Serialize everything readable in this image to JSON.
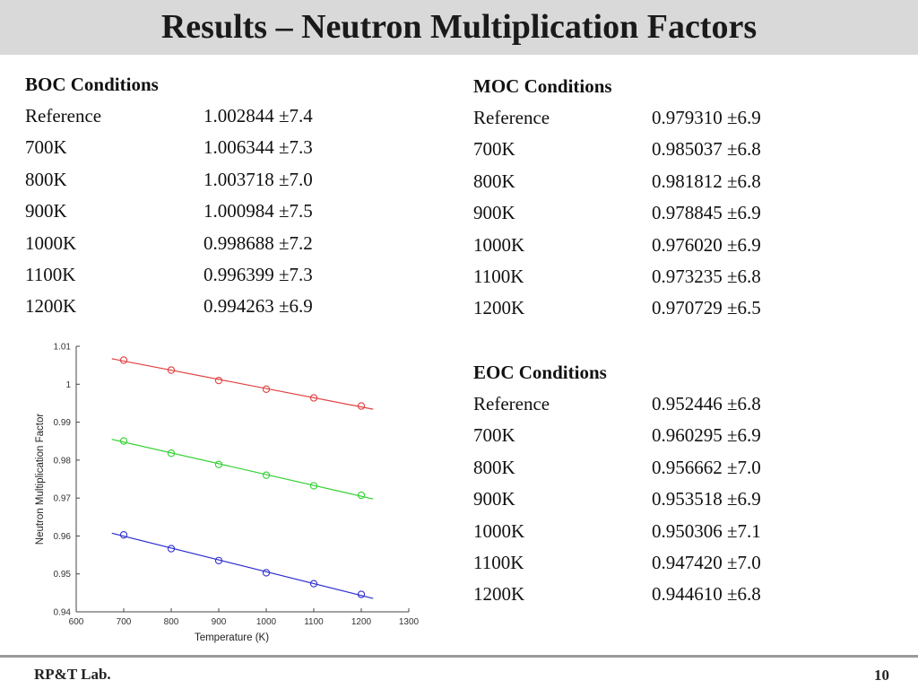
{
  "title": "Results – Neutron Multiplication Factors",
  "boc": {
    "heading": "BOC Conditions",
    "rows": [
      {
        "label": "Reference",
        "value": "1.002844 ±7.4"
      },
      {
        "label": "700K",
        "value": "1.006344 ±7.3"
      },
      {
        "label": "800K",
        "value": "1.003718 ±7.0"
      },
      {
        "label": "900K",
        "value": "1.000984 ±7.5"
      },
      {
        "label": "1000K",
        "value": "0.998688 ±7.2"
      },
      {
        "label": "1100K",
        "value": "0.996399 ±7.3"
      },
      {
        "label": "1200K",
        "value": "0.994263 ±6.9"
      }
    ]
  },
  "moc": {
    "heading": "MOC Conditions",
    "rows": [
      {
        "label": "Reference",
        "value": "0.979310 ±6.9"
      },
      {
        "label": "700K",
        "value": "0.985037 ±6.8"
      },
      {
        "label": "800K",
        "value": "0.981812 ±6.8"
      },
      {
        "label": "900K",
        "value": "0.978845 ±6.9"
      },
      {
        "label": "1000K",
        "value": "0.976020 ±6.9"
      },
      {
        "label": "1100K",
        "value": "0.973235 ±6.8"
      },
      {
        "label": "1200K",
        "value": "0.970729 ±6.5"
      }
    ]
  },
  "eoc": {
    "heading": "EOC Conditions",
    "rows": [
      {
        "label": "Reference",
        "value": "0.952446 ±6.8"
      },
      {
        "label": "700K",
        "value": "0.960295 ±6.9"
      },
      {
        "label": "800K",
        "value": "0.956662 ±7.0"
      },
      {
        "label": "900K",
        "value": "0.953518 ±6.9"
      },
      {
        "label": "1000K",
        "value": "0.950306 ±7.1"
      },
      {
        "label": "1100K",
        "value": "0.947420 ±7.0"
      },
      {
        "label": "1200K",
        "value": "0.944610 ±6.8"
      }
    ]
  },
  "chart_data": {
    "type": "scatter",
    "xlabel": "Temperature (K)",
    "ylabel": "Neutron Multiplication Factor",
    "xlim": [
      600,
      1300
    ],
    "ylim": [
      0.94,
      1.01
    ],
    "xticks": [
      "600",
      "700",
      "800",
      "900",
      "1000",
      "1100",
      "1200",
      "1300"
    ],
    "yticks": [
      "0.94",
      "0.95",
      "0.96",
      "0.97",
      "0.98",
      "0.99",
      "1",
      "1.01"
    ],
    "fit_range": [
      675,
      1225
    ],
    "grid": false,
    "series": [
      {
        "color": "#e04040",
        "x": [
          700,
          800,
          900,
          1000,
          1100,
          1200
        ],
        "y": [
          1.006344,
          1.003718,
          1.000984,
          0.998688,
          0.996399,
          0.994263
        ]
      },
      {
        "color": "#30d030",
        "x": [
          700,
          800,
          900,
          1000,
          1100,
          1200
        ],
        "y": [
          0.985037,
          0.981812,
          0.978845,
          0.97602,
          0.973235,
          0.970729
        ]
      },
      {
        "color": "#3030d0",
        "x": [
          700,
          800,
          900,
          1000,
          1100,
          1200
        ],
        "y": [
          0.960295,
          0.956662,
          0.953518,
          0.950306,
          0.94742,
          0.94461
        ]
      }
    ]
  },
  "footer": {
    "lab": "RP&T Lab.",
    "page": "10"
  }
}
